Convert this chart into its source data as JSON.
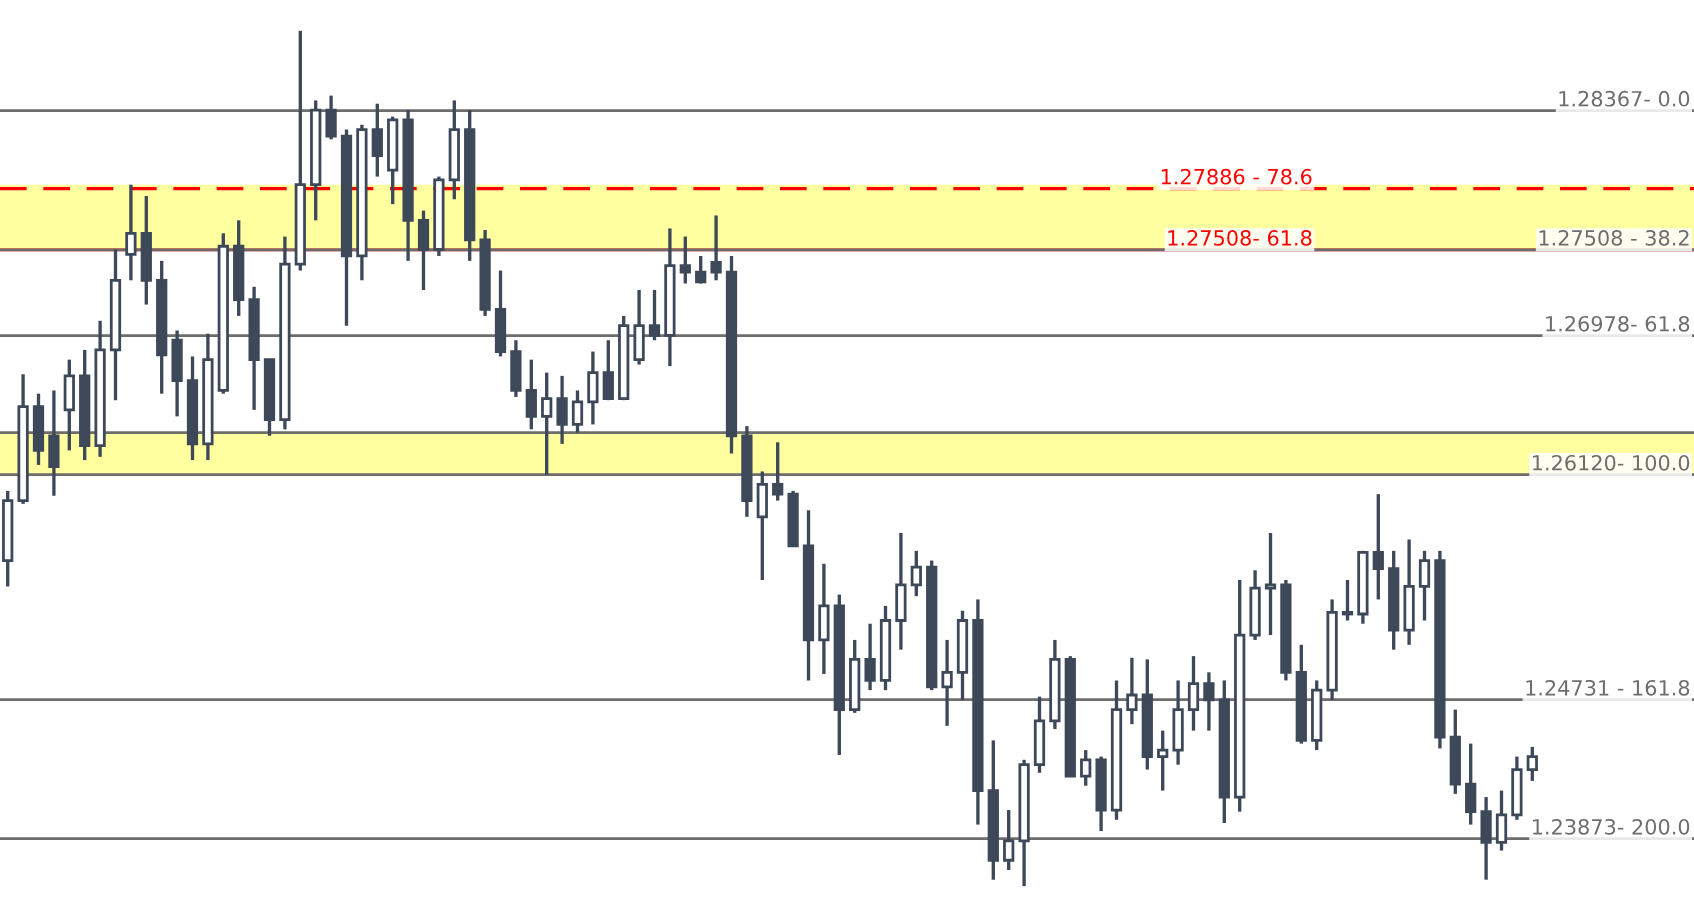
{
  "chart_data": {
    "type": "candlestick",
    "categories": [
      null,
      null,
      null,
      null,
      null,
      null,
      null,
      null,
      null,
      null,
      null,
      null,
      null,
      null,
      null,
      null,
      null,
      null,
      null,
      null,
      null,
      null,
      null,
      null,
      null,
      null,
      null,
      null,
      null,
      null,
      null,
      null,
      null,
      null,
      null,
      null,
      null,
      null,
      null,
      null,
      null,
      null,
      null,
      null,
      null,
      null,
      null,
      null,
      null,
      null,
      null,
      null,
      null,
      null,
      null,
      null,
      null,
      null,
      null,
      null,
      null,
      null,
      null,
      null,
      null,
      null,
      null,
      null,
      null,
      null,
      null,
      null,
      null,
      null,
      null,
      null,
      null,
      null,
      null,
      null,
      null,
      null,
      null,
      null,
      null,
      null,
      null,
      null,
      null,
      null,
      null,
      null,
      null,
      null,
      null,
      null,
      null,
      null,
      null,
      null
    ],
    "color": "#3d4859",
    "ohlc": [
      [
        1.2559,
        1.2602,
        1.2543,
        1.2596
      ],
      [
        1.2596,
        1.2674,
        1.2594,
        1.2654
      ],
      [
        1.2654,
        1.2662,
        1.2618,
        1.2627
      ],
      [
        1.2636,
        1.2664,
        1.2599,
        1.2617
      ],
      [
        1.2652,
        1.2683,
        1.2627,
        1.2673
      ],
      [
        1.2673,
        1.2689,
        1.2621,
        1.263
      ],
      [
        1.263,
        1.2707,
        1.2623,
        1.2689
      ],
      [
        1.2689,
        1.2751,
        1.2658,
        1.2732
      ],
      [
        1.2748,
        1.2791,
        1.2732,
        1.2761
      ],
      [
        1.2761,
        1.2784,
        1.2717,
        1.2732
      ],
      [
        1.2732,
        1.2744,
        1.2662,
        1.2686
      ],
      [
        1.2695,
        1.2701,
        1.2648,
        1.267
      ],
      [
        1.267,
        1.2685,
        1.2621,
        1.2631
      ],
      [
        1.2631,
        1.2699,
        1.2621,
        1.2683
      ],
      [
        1.2664,
        1.2761,
        1.2662,
        1.2753
      ],
      [
        1.2753,
        1.2769,
        1.271,
        1.272
      ],
      [
        1.272,
        1.2728,
        1.2652,
        1.2683
      ],
      [
        1.2683,
        1.2683,
        1.2636,
        1.2646
      ],
      [
        1.2646,
        1.2759,
        1.264,
        1.2742
      ],
      [
        1.2742,
        1.2886,
        1.2738,
        1.2791
      ],
      [
        1.2791,
        1.2843,
        1.2769,
        1.2837
      ],
      [
        1.2837,
        1.2846,
        1.2819,
        1.2821
      ],
      [
        1.2821,
        1.2825,
        1.2704,
        1.2747
      ],
      [
        1.2747,
        1.2828,
        1.2732,
        1.2825
      ],
      [
        1.2825,
        1.2841,
        1.2796,
        1.2809
      ],
      [
        1.28,
        1.2833,
        1.2779,
        1.2831
      ],
      [
        1.2831,
        1.2837,
        1.2744,
        1.2769
      ],
      [
        1.2769,
        1.2775,
        1.2726,
        1.2751
      ],
      [
        1.2751,
        1.2796,
        1.2747,
        1.2794
      ],
      [
        1.2794,
        1.2843,
        1.2782,
        1.2825
      ],
      [
        1.2825,
        1.2837,
        1.2744,
        1.2757
      ],
      [
        1.2757,
        1.2763,
        1.271,
        1.2714
      ],
      [
        1.2714,
        1.2738,
        1.2685,
        1.2688
      ],
      [
        1.2688,
        1.2695,
        1.266,
        1.2664
      ],
      [
        1.2664,
        1.2683,
        1.264,
        1.2648
      ],
      [
        1.2648,
        1.2675,
        1.2612,
        1.2659
      ],
      [
        1.2659,
        1.2673,
        1.2631,
        1.2643
      ],
      [
        1.2643,
        1.2664,
        1.2638,
        1.2657
      ],
      [
        1.2657,
        1.2688,
        1.2643,
        1.2675
      ],
      [
        1.2675,
        1.2695,
        1.2658,
        1.2659
      ],
      [
        1.2659,
        1.271,
        1.2658,
        1.2704
      ],
      [
        1.2683,
        1.2726,
        1.268,
        1.2704
      ],
      [
        1.2704,
        1.2726,
        1.2695,
        1.2698
      ],
      [
        1.2698,
        1.2764,
        1.2679,
        1.2741
      ],
      [
        1.2741,
        1.2759,
        1.273,
        1.2737
      ],
      [
        1.2737,
        1.2747,
        1.273,
        1.2731
      ],
      [
        1.2743,
        1.2772,
        1.2732,
        1.2737
      ],
      [
        1.2737,
        1.2747,
        1.2625,
        1.2636
      ],
      [
        1.2636,
        1.2642,
        1.2586,
        1.2596
      ],
      [
        1.2586,
        1.2614,
        1.2547,
        1.2606
      ],
      [
        1.2606,
        1.2632,
        1.2596,
        1.26
      ],
      [
        1.26,
        1.2602,
        1.2568,
        1.2568
      ],
      [
        1.2568,
        1.259,
        1.2485,
        1.251
      ],
      [
        1.251,
        1.2557,
        1.2489,
        1.2531
      ],
      [
        1.2531,
        1.2538,
        1.2439,
        1.2467
      ],
      [
        1.2467,
        1.251,
        1.2465,
        1.2498
      ],
      [
        1.2498,
        1.252,
        1.2479,
        1.2485
      ],
      [
        1.2485,
        1.2531,
        1.2479,
        1.2522
      ],
      [
        1.2522,
        1.2576,
        1.2504,
        1.2544
      ],
      [
        1.2544,
        1.2565,
        1.2537,
        1.2555
      ],
      [
        1.2555,
        1.2559,
        1.2479,
        1.2481
      ],
      [
        1.2481,
        1.251,
        1.2457,
        1.249
      ],
      [
        1.249,
        1.2528,
        1.2473,
        1.2522
      ],
      [
        1.2522,
        1.2535,
        1.2396,
        1.2417
      ],
      [
        1.2417,
        1.2448,
        1.2362,
        1.2374
      ],
      [
        1.2374,
        1.2405,
        1.2368,
        1.2386
      ],
      [
        1.2386,
        1.2436,
        1.2358,
        1.2433
      ],
      [
        1.2433,
        1.2475,
        1.2428,
        1.246
      ],
      [
        1.246,
        1.251,
        1.2455,
        1.2498
      ],
      [
        1.2498,
        1.25,
        1.2426,
        1.2426
      ],
      [
        1.2426,
        1.2442,
        1.242,
        1.2436
      ],
      [
        1.2436,
        1.2438,
        1.2392,
        1.2405
      ],
      [
        1.2405,
        1.2485,
        1.2399,
        1.2467
      ],
      [
        1.2467,
        1.2499,
        1.2458,
        1.2476
      ],
      [
        1.2476,
        1.2498,
        1.243,
        1.2438
      ],
      [
        1.2438,
        1.2454,
        1.2417,
        1.2442
      ],
      [
        1.2442,
        1.2485,
        1.2433,
        1.2467
      ],
      [
        1.2467,
        1.25,
        1.2454,
        1.2483
      ],
      [
        1.2483,
        1.249,
        1.2454,
        1.2473
      ],
      [
        1.2473,
        1.2485,
        1.2397,
        1.2413
      ],
      [
        1.2413,
        1.2547,
        1.2404,
        1.2513
      ],
      [
        1.2513,
        1.2553,
        1.251,
        1.2542
      ],
      [
        1.2542,
        1.2576,
        1.2513,
        1.2544
      ],
      [
        1.2544,
        1.2547,
        1.2485,
        1.249
      ],
      [
        1.249,
        1.2507,
        1.2446,
        1.2448
      ],
      [
        1.2448,
        1.2485,
        1.2442,
        1.2479
      ],
      [
        1.2479,
        1.2535,
        1.2473,
        1.2527
      ],
      [
        1.2527,
        1.2547,
        1.2522,
        1.2526
      ],
      [
        1.2526,
        1.2565,
        1.252,
        1.2564
      ],
      [
        1.2564,
        1.26,
        1.2535,
        1.2554
      ],
      [
        1.2554,
        1.2565,
        1.2504,
        1.2516
      ],
      [
        1.2516,
        1.2572,
        1.2507,
        1.2543
      ],
      [
        1.2543,
        1.2565,
        1.2522,
        1.2559
      ],
      [
        1.2559,
        1.2565,
        1.2443,
        1.245
      ],
      [
        1.245,
        1.2467,
        1.2415,
        1.2421
      ],
      [
        1.2421,
        1.2446,
        1.2396,
        1.2404
      ],
      [
        1.2404,
        1.2413,
        1.2362,
        1.2385
      ],
      [
        1.2385,
        1.2417,
        1.238,
        1.2402
      ],
      [
        1.2402,
        1.2438,
        1.2399,
        1.243
      ],
      [
        1.243,
        1.2444,
        1.2423,
        1.2438
      ]
    ],
    "ylim": [
      1.2347,
      1.2905
    ],
    "bands": [
      {
        "axis": "y",
        "from": 1.2612,
        "to": 1.2638,
        "color": "#ffffa0"
      },
      {
        "axis": "y",
        "from": 1.2751,
        "to": 1.2791,
        "color": "#ffffa0"
      }
    ],
    "ref_lines": [
      {
        "axis": "y",
        "value": 1.28367,
        "label": "1.28367- 0.0",
        "color": "#6d6d6d"
      },
      {
        "axis": "y",
        "value": 1.27886,
        "label": "1.27886 - 78.6",
        "color": "#ff0000",
        "line_style": "dashed"
      },
      {
        "axis": "y",
        "value": 1.27508,
        "label": "1.27508- 61.8",
        "color": "#ff0000"
      },
      {
        "axis": "y",
        "value": 1.27508,
        "label": "1.27508 - 38.2",
        "color": "#6d6d6d"
      },
      {
        "axis": "y",
        "value": 1.26978,
        "label": "1.26978- 61.8",
        "color": "#6d6d6d"
      },
      {
        "axis": "y",
        "value": 1.2638,
        "color": "#6d6d6d"
      },
      {
        "axis": "y",
        "value": 1.2612,
        "label": "1.26120- 100.0",
        "color": "#6d6d6d"
      },
      {
        "axis": "y",
        "value": 1.24731,
        "label": "1.24731 - 161.8",
        "color": "#6d6d6d"
      },
      {
        "axis": "y",
        "value": 1.23873,
        "label": "1.23873- 200.0",
        "color": "#6d6d6d"
      }
    ]
  }
}
